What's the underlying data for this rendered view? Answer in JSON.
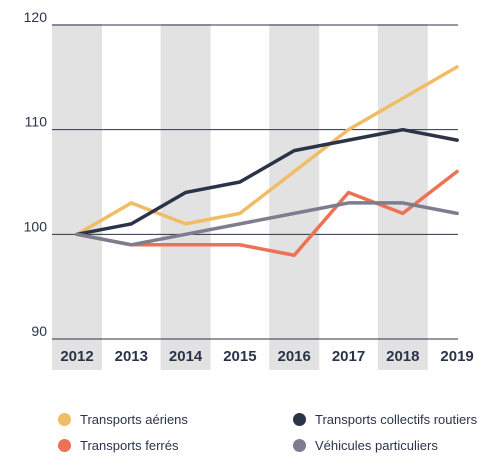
{
  "chart_data": {
    "type": "line",
    "categories": [
      "2012",
      "2013",
      "2014",
      "2015",
      "2016",
      "2017",
      "2018",
      "2019"
    ],
    "ylim": [
      90,
      120
    ],
    "yticks": [
      90,
      100,
      110,
      120
    ],
    "grid": "horizontal lines at y ticks, alternating vertical bands",
    "legend_position": "bottom",
    "series": [
      {
        "name": "Transports aériens",
        "color": "#f0bd66",
        "values": [
          100,
          103,
          101,
          102,
          106,
          110,
          113,
          116
        ]
      },
      {
        "name": "Transports collectifs routiers",
        "color": "#2b3349",
        "values": [
          100,
          101,
          104,
          105,
          108,
          109,
          110,
          109
        ]
      },
      {
        "name": "Transports ferrés",
        "color": "#ec7253",
        "values": [
          100,
          99,
          99,
          99,
          98,
          104,
          102,
          106
        ]
      },
      {
        "name": "Véhicules particuliers",
        "color": "#7c7d8f",
        "values": [
          100,
          99,
          100,
          101,
          102,
          103,
          103,
          102
        ]
      }
    ]
  },
  "legend": {
    "items": [
      {
        "label": "Transports aériens",
        "color": "#f0bd66"
      },
      {
        "label": "Transports collectifs routiers",
        "color": "#2b3349"
      },
      {
        "label": "Transports ferrés",
        "color": "#ec7253"
      },
      {
        "label": "Véhicules particuliers",
        "color": "#7c7d8f"
      }
    ]
  }
}
